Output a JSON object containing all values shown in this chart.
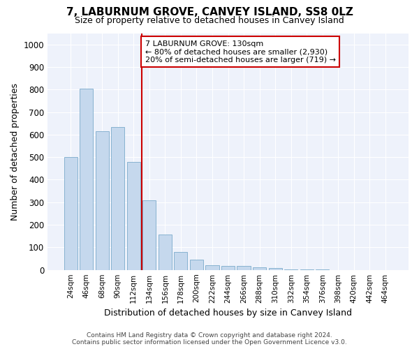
{
  "title": "7, LABURNUM GROVE, CANVEY ISLAND, SS8 0LZ",
  "subtitle": "Size of property relative to detached houses in Canvey Island",
  "xlabel": "Distribution of detached houses by size in Canvey Island",
  "ylabel": "Number of detached properties",
  "bar_color": "#c5d8ed",
  "bar_edge_color": "#7aaacb",
  "background_color": "#eef2fb",
  "grid_color": "#ffffff",
  "fig_bg_color": "#ffffff",
  "categories": [
    "24sqm",
    "46sqm",
    "68sqm",
    "90sqm",
    "112sqm",
    "134sqm",
    "156sqm",
    "178sqm",
    "200sqm",
    "222sqm",
    "244sqm",
    "266sqm",
    "288sqm",
    "310sqm",
    "332sqm",
    "354sqm",
    "376sqm",
    "398sqm",
    "420sqm",
    "442sqm",
    "464sqm"
  ],
  "values": [
    500,
    805,
    615,
    635,
    478,
    308,
    158,
    78,
    45,
    22,
    18,
    18,
    10,
    8,
    3,
    2,
    1,
    0,
    0,
    0,
    0
  ],
  "ylim": [
    0,
    1050
  ],
  "yticks": [
    0,
    100,
    200,
    300,
    400,
    500,
    600,
    700,
    800,
    900,
    1000
  ],
  "vline_x": 4.5,
  "vline_color": "#cc0000",
  "annotation_title": "7 LABURNUM GROVE: 130sqm",
  "annotation_line1": "← 80% of detached houses are smaller (2,930)",
  "annotation_line2": "20% of semi-detached houses are larger (719) →",
  "annotation_box_color": "#ffffff",
  "annotation_border_color": "#cc0000",
  "footer_line1": "Contains HM Land Registry data © Crown copyright and database right 2024.",
  "footer_line2": "Contains public sector information licensed under the Open Government Licence v3.0.",
  "title_fontsize": 11,
  "subtitle_fontsize": 9,
  "ylabel_fontsize": 9,
  "xlabel_fontsize": 9,
  "annotation_fontsize": 8,
  "footer_fontsize": 6.5
}
